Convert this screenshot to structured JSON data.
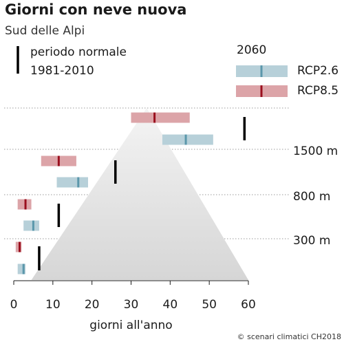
{
  "chart_data": {
    "type": "bar",
    "title": "Giorni con neve nuova",
    "subtitle": "Sud delle Alpi",
    "xlabel": "giorni all'anno",
    "xlim": [
      0,
      60
    ],
    "x_ticks": [
      "0",
      "10",
      "20",
      "30",
      "40",
      "50",
      "60"
    ],
    "altitude_labels": [
      "1500 m",
      "800 m",
      "300 m"
    ],
    "legend": {
      "normal_period": [
        "periodo normale",
        "1981-2010"
      ],
      "year": "2060",
      "scenarios": [
        "RCP2.6",
        "RCP8.5"
      ]
    },
    "colors": {
      "rcp26_fill": "#b7d0d9",
      "rcp26_median": "#5b97ab",
      "rcp85_fill": "#dca4a8",
      "rcp85_median": "#9a0f1e",
      "normal": "#000000",
      "pyramid": "#d9d9d9"
    },
    "groups": [
      {
        "altitude": "1500 m",
        "normal": 59,
        "rcp85": {
          "min": 30,
          "median": 36,
          "max": 45
        },
        "rcp26": {
          "min": 38,
          "median": 44,
          "max": 51
        }
      },
      {
        "altitude": "800 m",
        "normal": 26,
        "rcp85": {
          "min": 7,
          "median": 11.5,
          "max": 16
        },
        "rcp26": {
          "min": 11,
          "median": 16.5,
          "max": 19
        }
      },
      {
        "altitude": "300 m",
        "normal": 11.5,
        "rcp85": {
          "min": 1,
          "median": 3,
          "max": 4.5
        },
        "rcp26": {
          "min": 2.5,
          "median": 5,
          "max": 6.5
        }
      },
      {
        "altitude": "",
        "normal": 6.5,
        "rcp85": {
          "min": 0.5,
          "median": 1.5,
          "max": 2
        },
        "rcp26": {
          "min": 1,
          "median": 2.5,
          "max": 3
        }
      }
    ]
  }
}
